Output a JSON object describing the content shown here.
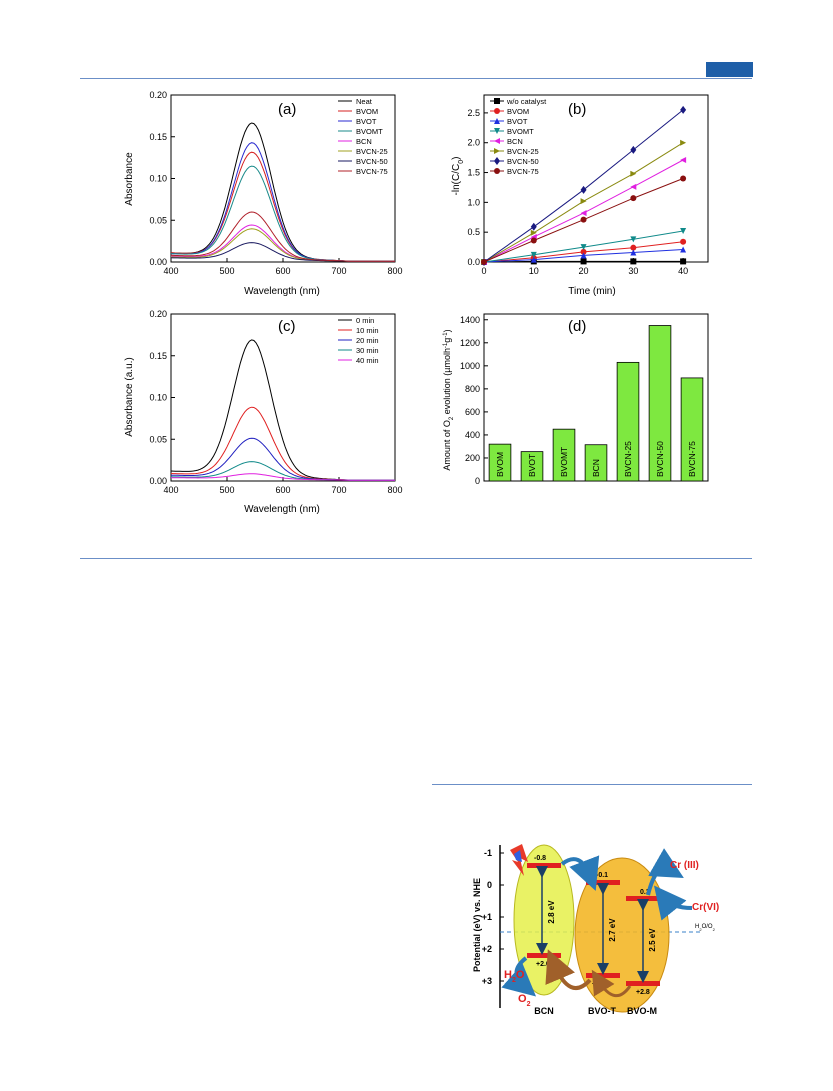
{
  "page": {
    "header_tab_color": "#1f5fa8",
    "rule_color": "#6b8fc7"
  },
  "chart_data": [
    {
      "id": "a",
      "type": "line",
      "panel_label": "(a)",
      "xlabel": "Wavelength (nm)",
      "ylabel": "Absorbance",
      "xlim": [
        400,
        800
      ],
      "ylim": [
        0,
        0.2
      ],
      "xticks": [
        400,
        500,
        600,
        700,
        800
      ],
      "yticks": [
        0.0,
        0.05,
        0.1,
        0.15,
        0.2
      ],
      "ytick_labels": [
        "0.00",
        "0.05",
        "0.10",
        "0.15",
        "0.20"
      ],
      "legend_position": "top-right",
      "series": [
        {
          "name": "Neat",
          "color": "#000000",
          "peak": 0.16,
          "base": 0.01
        },
        {
          "name": "BVOM",
          "color": "#d62020",
          "peak": 0.125,
          "base": 0.01
        },
        {
          "name": "BVOT",
          "color": "#2a2ad0",
          "peak": 0.137,
          "base": 0.009
        },
        {
          "name": "BVOMT",
          "color": "#1a8a8a",
          "peak": 0.109,
          "base": 0.009
        },
        {
          "name": "BCN",
          "color": "#e020e0",
          "peak": 0.04,
          "base": 0.006
        },
        {
          "name": "BVCN-25",
          "color": "#a0a020",
          "peak": 0.036,
          "base": 0.005
        },
        {
          "name": "BVCN-50",
          "color": "#1a1a60",
          "peak": 0.02,
          "base": 0.004
        },
        {
          "name": "BVCN-75",
          "color": "#b0202a",
          "peak": 0.055,
          "base": 0.007
        }
      ]
    },
    {
      "id": "b",
      "type": "line",
      "panel_label": "(b)",
      "xlabel": "Time (min)",
      "ylabel": "-ln(C/C",
      "ylabel_sub": "0",
      "ylabel_end": ")",
      "xlim": [
        0,
        45
      ],
      "ylim": [
        0,
        2.8
      ],
      "xticks": [
        0,
        10,
        20,
        30,
        40
      ],
      "yticks": [
        0.0,
        0.5,
        1.0,
        1.5,
        2.0,
        2.5
      ],
      "ytick_labels": [
        "0.0",
        "0.5",
        "1.0",
        "1.5",
        "2.0",
        "2.5"
      ],
      "legend_position": "top-left",
      "x": [
        0,
        10,
        20,
        30,
        40
      ],
      "series": [
        {
          "name": "w/o catalyst",
          "color": "#000000",
          "marker": "square",
          "values": [
            0,
            0.01,
            0.01,
            0.01,
            0.01
          ]
        },
        {
          "name": "BVOM",
          "color": "#e02020",
          "marker": "circle",
          "values": [
            0,
            0.07,
            0.17,
            0.24,
            0.34
          ]
        },
        {
          "name": "BVOT",
          "color": "#2030e0",
          "marker": "triangle-up",
          "values": [
            0,
            0.04,
            0.11,
            0.16,
            0.21
          ]
        },
        {
          "name": "BVOMT",
          "color": "#108a8a",
          "marker": "triangle-down",
          "values": [
            0,
            0.12,
            0.25,
            0.38,
            0.52
          ]
        },
        {
          "name": "BCN",
          "color": "#e020e0",
          "marker": "triangle-left",
          "values": [
            0,
            0.42,
            0.82,
            1.26,
            1.71
          ]
        },
        {
          "name": "BVCN-25",
          "color": "#8a8a10",
          "marker": "triangle-right",
          "values": [
            0,
            0.49,
            1.02,
            1.48,
            2.0
          ]
        },
        {
          "name": "BVCN-50",
          "color": "#1a1a80",
          "marker": "diamond",
          "values": [
            0,
            0.59,
            1.21,
            1.88,
            2.55
          ]
        },
        {
          "name": "BVCN-75",
          "color": "#8a1010",
          "marker": "circle",
          "values": [
            0,
            0.36,
            0.71,
            1.07,
            1.4
          ]
        }
      ]
    },
    {
      "id": "c",
      "type": "line",
      "panel_label": "(c)",
      "xlabel": "Wavelength (nm)",
      "ylabel": "Absorbance (a.u.)",
      "xlim": [
        400,
        800
      ],
      "ylim": [
        0,
        0.2
      ],
      "xticks": [
        400,
        500,
        600,
        700,
        800
      ],
      "yticks": [
        0.0,
        0.05,
        0.1,
        0.15,
        0.2
      ],
      "ytick_labels": [
        "0.00",
        "0.05",
        "0.10",
        "0.15",
        "0.20"
      ],
      "legend_position": "top-right",
      "series": [
        {
          "name": "0 min",
          "color": "#000000",
          "peak": 0.162,
          "base": 0.011
        },
        {
          "name": "10 min",
          "color": "#e02020",
          "peak": 0.083,
          "base": 0.008
        },
        {
          "name": "20 min",
          "color": "#2020c0",
          "peak": 0.047,
          "base": 0.006
        },
        {
          "name": "30 min",
          "color": "#108a8a",
          "peak": 0.02,
          "base": 0.004
        },
        {
          "name": "40 min",
          "color": "#e020e0",
          "peak": 0.006,
          "base": 0.003
        }
      ]
    },
    {
      "id": "d",
      "type": "bar",
      "panel_label": "(d)",
      "ylabel_parts": [
        "Amount of O",
        "2",
        " evolution (µmolh",
        "-1",
        "g",
        "-1",
        ")"
      ],
      "ylim": [
        0,
        1450
      ],
      "yticks": [
        0,
        200,
        400,
        600,
        800,
        1000,
        1200,
        1400
      ],
      "categories": [
        "BVOM",
        "BVOT",
        "BVOMT",
        "BCN",
        "BVCN-25",
        "BVCN-50",
        "BVCN-75"
      ],
      "values": [
        320,
        255,
        450,
        315,
        1030,
        1350,
        895
      ],
      "bar_color": "#7ee840"
    }
  ],
  "scheme": {
    "axis_title": "Potential (eV) vs. NHE",
    "ticks": [
      "-1",
      "0",
      "+1",
      "+2",
      "+3"
    ],
    "bcn": {
      "label": "BCN",
      "cb": "-0.8",
      "vb": "+2.0",
      "gap": "2.8 eV"
    },
    "bvo_t": {
      "label": "BVO-T",
      "cb": "-0.1",
      "vb": "+2.6",
      "gap": "2.7 eV"
    },
    "bvo_m": {
      "label": "BVO-M",
      "cb": "0.3",
      "vb": "+2.8",
      "gap": "2.5 eV"
    },
    "cr3": "Cr (III)",
    "cr6": "Cr(VI)",
    "h2o": "H",
    "h2o_sub": "2",
    "h2o_end": "O",
    "o2": "O",
    "o2_sub": "2",
    "redox": "H",
    "redox_sub": "2",
    "redox_mid": "O/O",
    "redox_sub2": "2"
  }
}
